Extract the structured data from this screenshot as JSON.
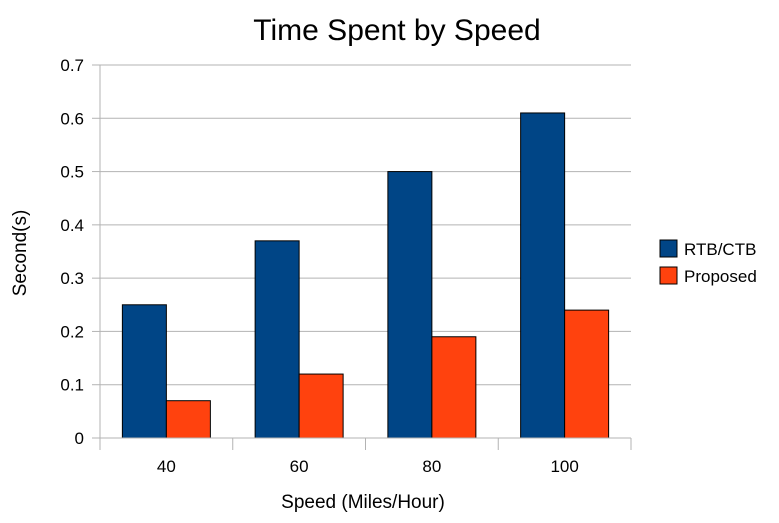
{
  "chart_data": {
    "type": "bar",
    "title": "Time Spent by Speed",
    "xlabel": "Speed (Miles/Hour)",
    "ylabel": "Second(s)",
    "categories": [
      "40",
      "60",
      "80",
      "100"
    ],
    "series": [
      {
        "name": "RTB/CTB",
        "values": [
          0.25,
          0.37,
          0.5,
          0.61
        ],
        "color": "#004586"
      },
      {
        "name": "Proposed",
        "values": [
          0.07,
          0.12,
          0.19,
          0.24
        ],
        "color": "#ff420e"
      }
    ],
    "ylim": [
      0,
      0.7
    ],
    "yticks": [
      "0",
      "0.1",
      "0.2",
      "0.3",
      "0.4",
      "0.5",
      "0.6",
      "0.7"
    ],
    "grid": true,
    "legend": "right"
  }
}
